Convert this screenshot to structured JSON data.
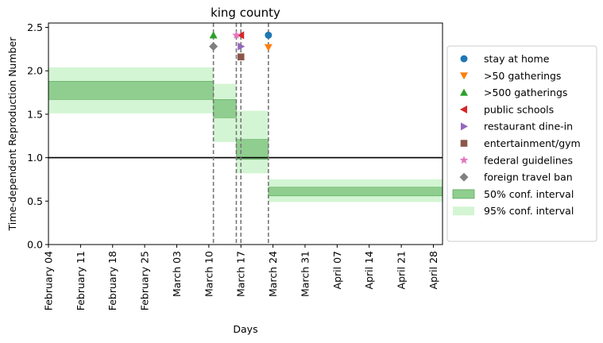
{
  "chart_data": {
    "type": "line",
    "title": "king county",
    "xlabel": "Days",
    "ylabel": "Time-dependent Reproduction Number",
    "ylim": [
      0,
      2.55
    ],
    "xlim": [
      "2020-02-04",
      "2020-04-30"
    ],
    "yticks": [
      0.0,
      0.5,
      1.0,
      1.5,
      2.0,
      2.5
    ],
    "ytick_labels": [
      "0.0",
      "0.5",
      "1.0",
      "1.5",
      "2.0",
      "2.5"
    ],
    "xticks": [
      {
        "date": "2020-02-04",
        "label": "February 04"
      },
      {
        "date": "2020-02-11",
        "label": "February 11"
      },
      {
        "date": "2020-02-18",
        "label": "February 18"
      },
      {
        "date": "2020-02-25",
        "label": "February 25"
      },
      {
        "date": "2020-03-03",
        "label": "March 03"
      },
      {
        "date": "2020-03-10",
        "label": "March 10"
      },
      {
        "date": "2020-03-17",
        "label": "March 17"
      },
      {
        "date": "2020-03-24",
        "label": "March 24"
      },
      {
        "date": "2020-03-31",
        "label": "March 31"
      },
      {
        "date": "2020-04-07",
        "label": "April 07"
      },
      {
        "date": "2020-04-14",
        "label": "April 14"
      },
      {
        "date": "2020-04-21",
        "label": "April 21"
      },
      {
        "date": "2020-04-28",
        "label": "April 28"
      }
    ],
    "reference_line": {
      "y": 1.0,
      "color": "#000000"
    },
    "intervals_95": [
      {
        "start": "2020-02-04",
        "end": "2020-03-11",
        "low": 1.51,
        "high": 2.04
      },
      {
        "start": "2020-03-11",
        "end": "2020-03-16",
        "low": 1.18,
        "high": 1.85
      },
      {
        "start": "2020-03-16",
        "end": "2020-03-23",
        "low": 0.82,
        "high": 1.54
      },
      {
        "start": "2020-03-23",
        "end": "2020-04-30",
        "low": 0.49,
        "high": 0.75
      }
    ],
    "intervals_50": [
      {
        "start": "2020-02-04",
        "end": "2020-03-11",
        "low": 1.67,
        "high": 1.88
      },
      {
        "start": "2020-03-11",
        "end": "2020-03-16",
        "low": 1.46,
        "high": 1.67
      },
      {
        "start": "2020-03-16",
        "end": "2020-03-23",
        "low": 0.98,
        "high": 1.21
      },
      {
        "start": "2020-03-23",
        "end": "2020-04-30",
        "low": 0.56,
        "high": 0.66
      }
    ],
    "event_lines": [
      "2020-03-11",
      "2020-03-16",
      "2020-03-17",
      "2020-03-23"
    ],
    "events": [
      {
        "name": "stay at home",
        "date": "2020-03-23",
        "y": 2.41,
        "marker": "circle",
        "color": "#1f77b4"
      },
      {
        "name": ">50 gatherings",
        "date": "2020-03-23",
        "y": 2.27,
        "marker": "triangle-down",
        "color": "#ff7f0e"
      },
      {
        "name": ">500 gatherings",
        "date": "2020-03-11",
        "y": 2.41,
        "marker": "triangle-up",
        "color": "#2ca02c"
      },
      {
        "name": "public schools",
        "date": "2020-03-17",
        "y": 2.41,
        "marker": "triangle-left",
        "color": "#d62728"
      },
      {
        "name": "restaurant dine-in",
        "date": "2020-03-17",
        "y": 2.28,
        "marker": "triangle-right",
        "color": "#9467bd"
      },
      {
        "name": "entertainment/gym",
        "date": "2020-03-17",
        "y": 2.16,
        "marker": "square",
        "color": "#8c564b"
      },
      {
        "name": "federal guidelines",
        "date": "2020-03-16",
        "y": 2.41,
        "marker": "star",
        "color": "#e377c2"
      },
      {
        "name": "foreign travel ban",
        "date": "2020-03-11",
        "y": 2.28,
        "marker": "diamond",
        "color": "#7f7f7f"
      }
    ],
    "legend": {
      "placement": "right",
      "items": [
        {
          "label": "stay at home",
          "marker": "circle",
          "color": "#1f77b4"
        },
        {
          "label": ">50 gatherings",
          "marker": "triangle-down",
          "color": "#ff7f0e"
        },
        {
          "label": ">500 gatherings",
          "marker": "triangle-up",
          "color": "#2ca02c"
        },
        {
          "label": "public schools",
          "marker": "triangle-left",
          "color": "#d62728"
        },
        {
          "label": "restaurant dine-in",
          "marker": "triangle-right",
          "color": "#9467bd"
        },
        {
          "label": "entertainment/gym",
          "marker": "square",
          "color": "#8c564b"
        },
        {
          "label": "federal guidelines",
          "marker": "star",
          "color": "#e377c2"
        },
        {
          "label": "foreign travel ban",
          "marker": "diamond",
          "color": "#7f7f7f"
        },
        {
          "label": "50% conf. interval",
          "marker": "patch50",
          "color": "#4daf4a"
        },
        {
          "label": "95% conf. interval",
          "marker": "patch95",
          "color": "#90ee90"
        }
      ]
    },
    "colors": {
      "band50_fill": "#8fce8f",
      "band50_edge": "#5aa95a",
      "band95_fill": "#d3f5d3",
      "event_line": "#777777"
    }
  }
}
